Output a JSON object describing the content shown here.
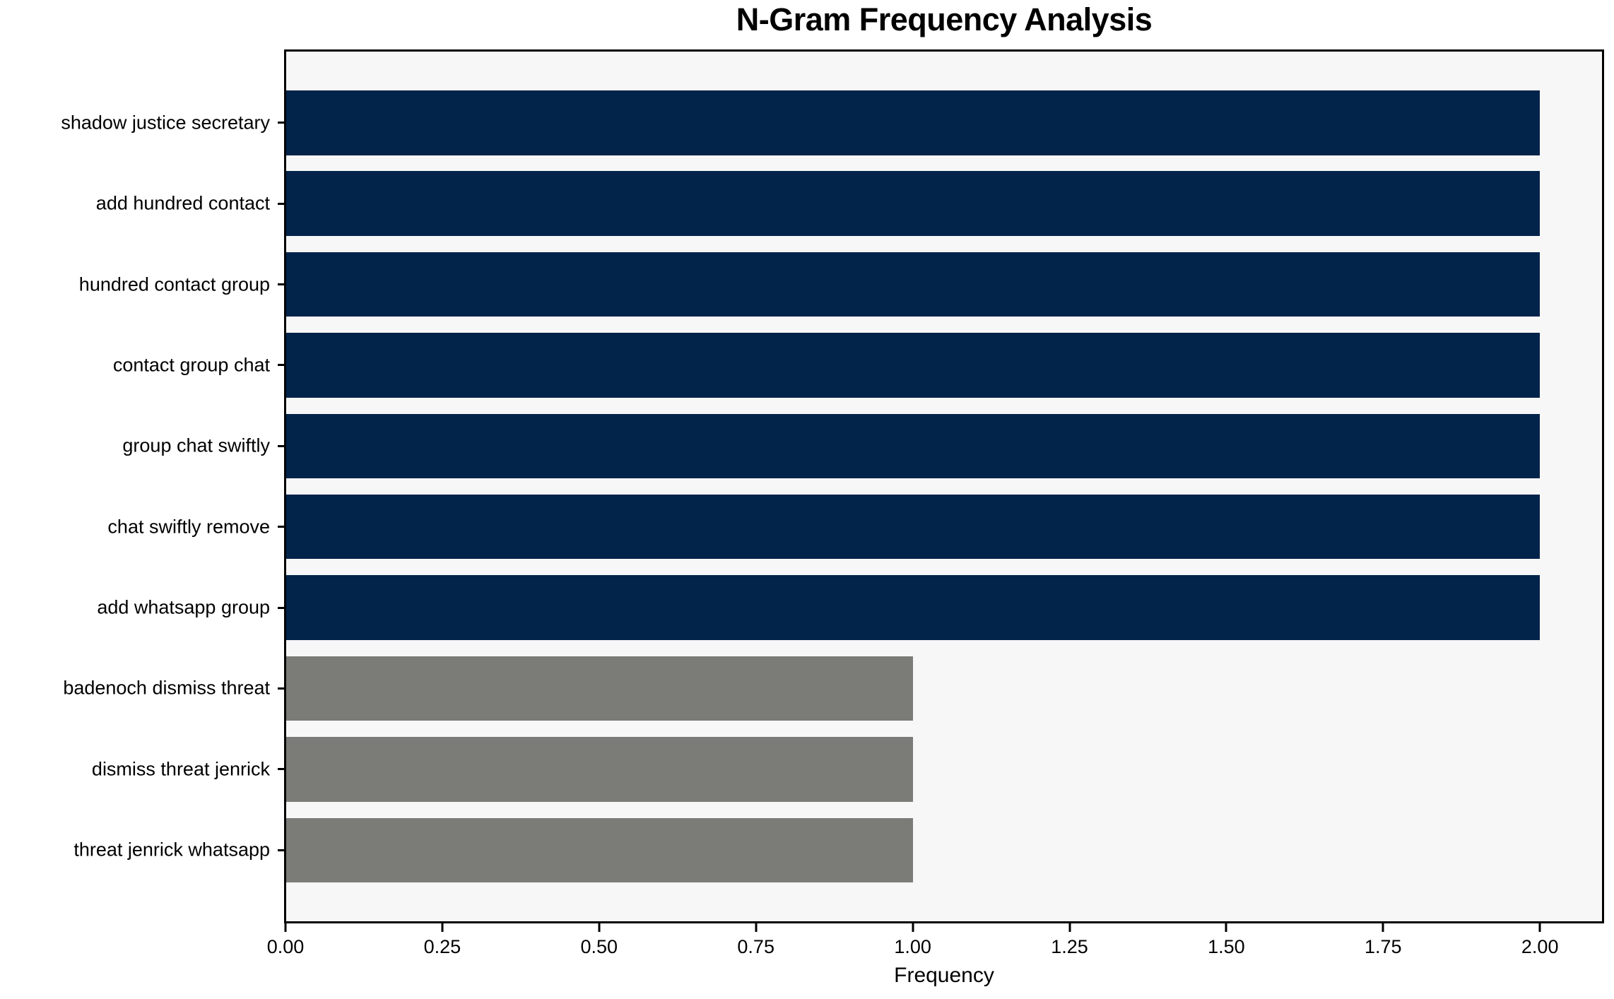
{
  "chart_data": {
    "type": "bar",
    "orientation": "horizontal",
    "title": "N-Gram Frequency Analysis",
    "xlabel": "Frequency",
    "ylabel": "",
    "categories": [
      "shadow justice secretary",
      "add hundred contact",
      "hundred contact group",
      "contact group chat",
      "group chat swiftly",
      "chat swiftly remove",
      "add whatsapp group",
      "badenoch dismiss threat",
      "dismiss threat jenrick",
      "threat jenrick whatsapp"
    ],
    "values": [
      2,
      2,
      2,
      2,
      2,
      2,
      2,
      1,
      1,
      1
    ],
    "bar_colors": [
      "#02234a",
      "#02234a",
      "#02234a",
      "#02234a",
      "#02234a",
      "#02234a",
      "#02234a",
      "#7b7b78",
      "#7b7b78",
      "#7b7b78"
    ],
    "xlim": [
      0,
      2.1
    ],
    "x_ticks": [
      {
        "value": 0.0,
        "label": "0.00"
      },
      {
        "value": 0.25,
        "label": "0.25"
      },
      {
        "value": 0.5,
        "label": "0.50"
      },
      {
        "value": 0.75,
        "label": "0.75"
      },
      {
        "value": 1.0,
        "label": "1.00"
      },
      {
        "value": 1.25,
        "label": "1.25"
      },
      {
        "value": 1.5,
        "label": "1.50"
      },
      {
        "value": 1.75,
        "label": "1.75"
      },
      {
        "value": 2.0,
        "label": "2.00"
      }
    ],
    "grid": false,
    "legend": null,
    "colors": {
      "high_frequency_bar": "#02234a",
      "low_frequency_bar": "#7b7b78",
      "plot_background": "#f7f7f7",
      "figure_background": "#ffffff",
      "axis": "#000000",
      "text": "#000000"
    }
  }
}
